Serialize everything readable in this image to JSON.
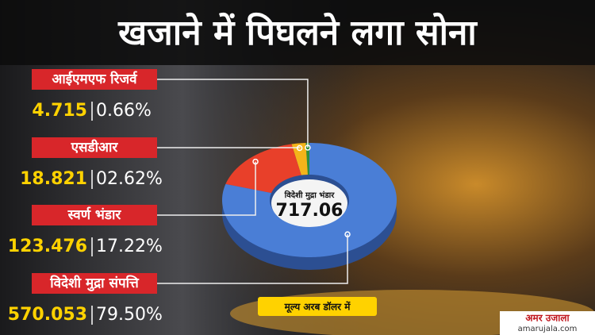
{
  "chart_data": {
    "type": "donut",
    "title": "खजाने में पिघलने लगा सोना",
    "categories": [
      "आईएमएफ रिजर्व",
      "एसडीआर",
      "स्वर्ण भंडार",
      "विदेशी मुद्रा संपत्ति"
    ],
    "values": [
      4.715,
      18.821,
      123.476,
      570.053
    ],
    "shares": [
      0.66,
      2.62,
      17.22,
      79.5
    ],
    "share_labels": [
      "0.66%",
      "02.62%",
      "17.22%",
      "79.50%"
    ],
    "colors": [
      "#2f8f3c",
      "#f4b41a",
      "#e8402a",
      "#4a7ed6"
    ],
    "center_label": "विदेशी मुद्रा भंडार",
    "center_value": 717.06,
    "note": "मूल्य अरब डॉलर में",
    "brand": "अमर उजाला",
    "brand_url": "amarujala.com"
  }
}
